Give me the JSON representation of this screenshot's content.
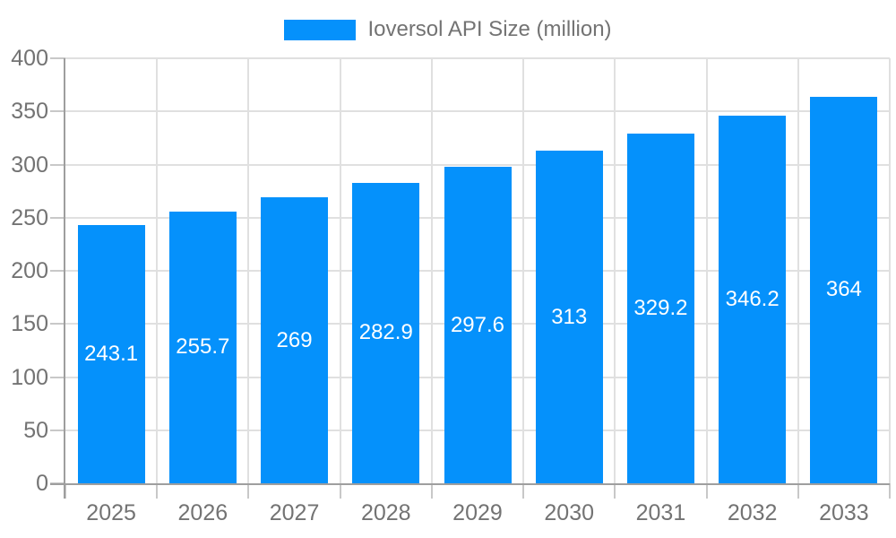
{
  "legend": {
    "label": "Ioversol API Size (million)"
  },
  "chart_data": {
    "type": "bar",
    "title": "Ioversol API Size (million)",
    "series_name": "Ioversol API Size (million)",
    "categories": [
      "2025",
      "2026",
      "2027",
      "2028",
      "2029",
      "2030",
      "2031",
      "2032",
      "2033"
    ],
    "values": [
      243.1,
      255.7,
      269,
      282.9,
      297.6,
      313,
      329.2,
      346.2,
      364
    ],
    "value_labels": [
      "243.1",
      "255.7",
      "269",
      "282.9",
      "297.6",
      "313",
      "329.2",
      "346.2",
      "364"
    ],
    "xlabel": "",
    "ylabel": "",
    "ylim": [
      0,
      400
    ],
    "yticks": [
      0,
      50,
      100,
      150,
      200,
      250,
      300,
      350,
      400
    ],
    "grid": true,
    "legend_position": "top-center",
    "value_labels_position": "inside-center",
    "colors": {
      "bar": "#0591fb",
      "value_label": "#ffffff",
      "axis_text": "#737373",
      "grid_line": "#e0e0e0",
      "tick_line": "#c8c8c8",
      "axis_line": "#9e9e9e",
      "background": "#ffffff"
    }
  }
}
